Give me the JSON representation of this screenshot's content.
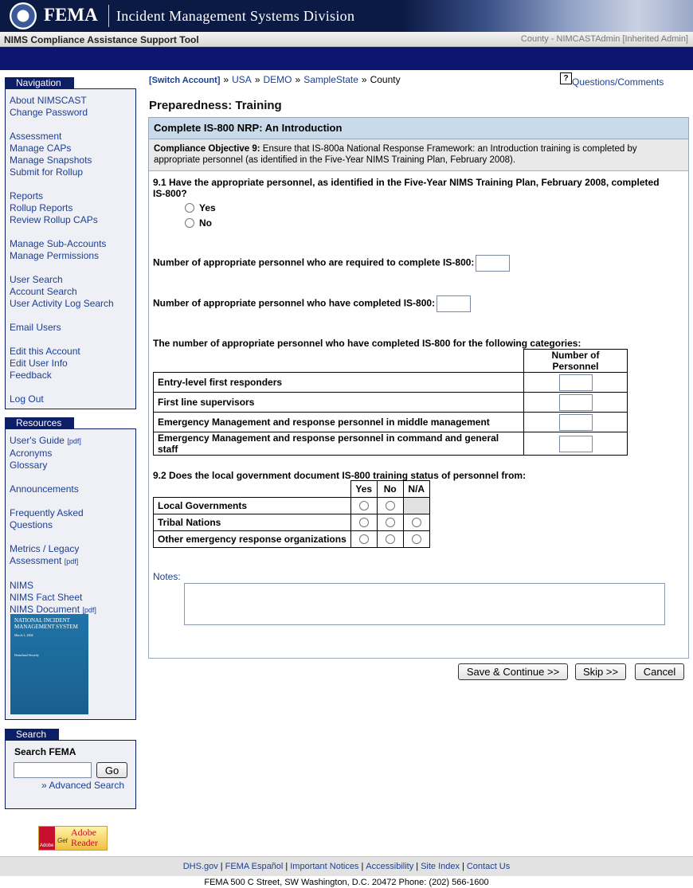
{
  "header": {
    "logo": "FEMA",
    "division": "Incident Management Systems Division"
  },
  "toolbar": {
    "app": "NIMS Compliance Assistance Support Tool",
    "user": "County - NIMCASTAdmin [Inherited Admin]"
  },
  "navigation": {
    "title": "Navigation",
    "groups": [
      [
        "About NIMSCAST",
        "Change Password"
      ],
      [
        "Assessment",
        "Manage CAPs",
        "Manage Snapshots",
        "Submit for Rollup"
      ],
      [
        "Reports",
        "Rollup Reports",
        "Review Rollup CAPs"
      ],
      [
        "Manage Sub-Accounts",
        "Manage Permissions"
      ],
      [
        "User Search",
        "Account Search",
        "User Activity Log Search"
      ],
      [
        "Email Users"
      ],
      [
        "Edit this Account",
        "Edit User Info",
        "Feedback"
      ],
      [
        "Log Out"
      ]
    ]
  },
  "resources": {
    "title": "Resources",
    "groups": [
      [
        {
          "text": "User's Guide",
          "tag": "[pdf]"
        },
        {
          "text": "Acronyms"
        },
        {
          "text": "Glossary"
        }
      ],
      [
        {
          "text": "Announcements"
        }
      ],
      [
        {
          "text": "Frequently Asked Questions"
        }
      ],
      [
        {
          "text": "Metrics / Legacy Assessment",
          "tag": "[pdf]"
        }
      ],
      [
        {
          "text": "NIMS"
        },
        {
          "text": "NIMS Fact Sheet"
        },
        {
          "text": "NIMS Document",
          "tag": "[pdf]"
        }
      ]
    ],
    "cover": {
      "title": "NATIONAL INCIDENT MANAGEMENT SYSTEM",
      "date": "March 1, 2004",
      "seal": "Homeland Security"
    }
  },
  "search": {
    "title": "Search",
    "label": "Search FEMA",
    "button": "Go",
    "advanced": "» Advanced Search"
  },
  "adobe": {
    "brand": "Adobe",
    "get": "Get",
    "product": "Adobe Reader"
  },
  "breadcrumb": {
    "items": [
      "[Switch Account]",
      "USA",
      "DEMO",
      "SampleState",
      "County"
    ],
    "separator": "»"
  },
  "help": {
    "icon": "?",
    "link": "Questions/Comments"
  },
  "page_title": "Preparedness: Training",
  "section": {
    "title": "Complete IS-800 NRP: An Introduction",
    "objective_label": "Compliance Objective 9:",
    "objective_text": "Ensure that IS-800a National Response Framework: an Introduction training is completed by appropriate personnel (as identified in the Five-Year NIMS Training Plan, February 2008)."
  },
  "question_1": {
    "text": "9.1 Have the appropriate personnel, as identified in the Five-Year NIMS Training Plan, February 2008, completed IS-800?",
    "options": [
      "Yes",
      "No"
    ]
  },
  "fields": [
    "Number of appropriate personnel who are required to complete IS-800:",
    "Number of appropriate personnel who have completed IS-800:"
  ],
  "categories_table": {
    "caption": "The number of appropriate personnel who have completed IS-800 for the following categories:",
    "header": "Number of Personnel",
    "rows": [
      "Entry-level first responders",
      "First line supervisors",
      "Emergency Management and response personnel in middle management",
      "Emergency Management and response personnel in command and general staff"
    ]
  },
  "question_2": {
    "text": "9.2 Does the local government document IS-800 training status of personnel from:",
    "columns": [
      "Yes",
      "No",
      "N/A"
    ],
    "rows": [
      "Local Governments",
      "Tribal Nations",
      "Other emergency response organizations"
    ]
  },
  "notes_label": "Notes:",
  "buttons": [
    "Save & Continue >>",
    "Skip >>",
    "Cancel"
  ],
  "footer": {
    "links": [
      "DHS.gov",
      "FEMA Español",
      "Important Notices",
      "Accessibility",
      "Site Index",
      "Contact Us"
    ],
    "separator": "|",
    "address": "FEMA 500 C Street, SW Washington, D.C. 20472 Phone: (202) 566-1600"
  }
}
